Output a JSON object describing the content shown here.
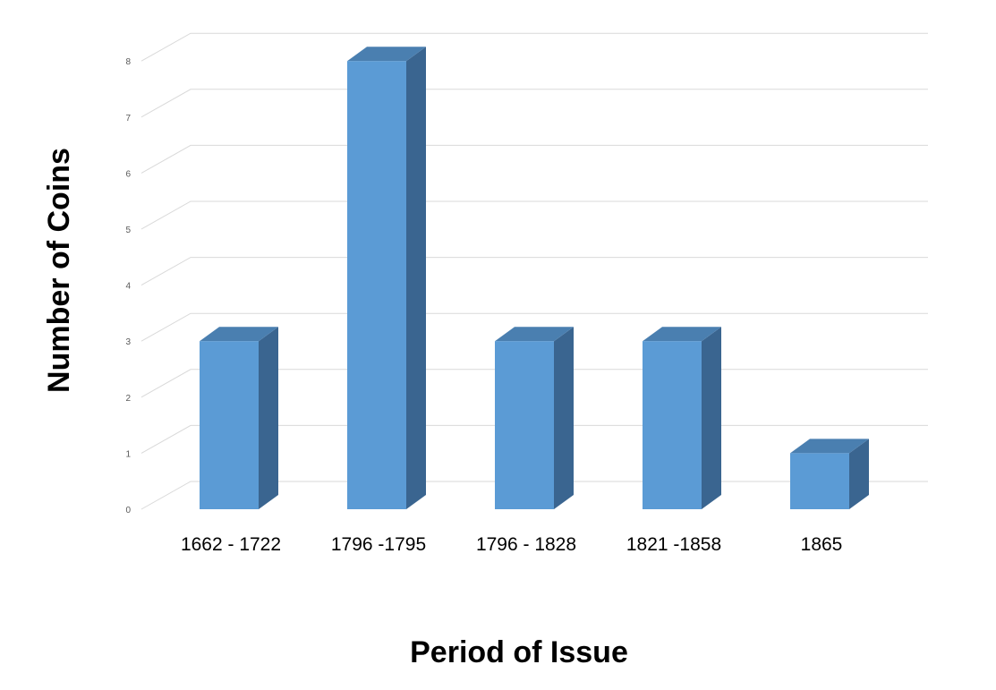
{
  "chart_data": {
    "type": "bar",
    "style": "3d-column",
    "categories": [
      "1662 - 1722",
      "1796 -1795",
      "1796 - 1828",
      "1821 -1858",
      "1865"
    ],
    "values": [
      3,
      8,
      3,
      3,
      1
    ],
    "title": "",
    "xlabel": "Period of Issue",
    "ylabel": "Number of Coins",
    "ylim": [
      0,
      8
    ],
    "yticks": [
      0,
      1,
      2,
      3,
      4,
      5,
      6,
      7,
      8
    ],
    "grid": true,
    "legend": "none",
    "colors": {
      "bar_front": "#5b9bd5",
      "bar_top": "#4a7fb0",
      "bar_side": "#3a6590",
      "grid": "#d9d9d9"
    }
  }
}
